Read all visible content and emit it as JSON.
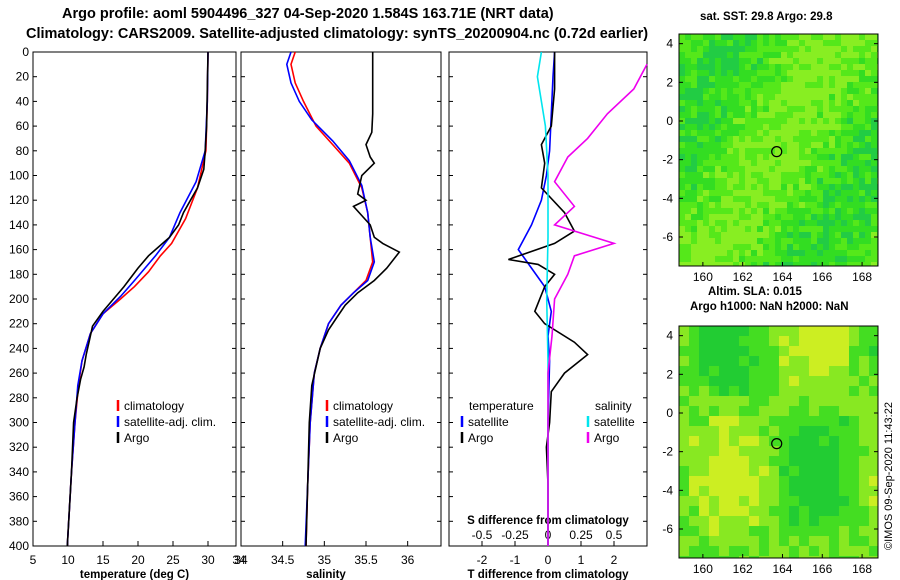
{
  "header": {
    "line1": "Argo profile: aoml 5904496_327 04-Sep-2020 1.584S 163.71E (NRT data)",
    "line2": "Climatology: CARS2009. Satellite-adjusted climatology: synTS_20200904.nc (0.72d earlier)"
  },
  "credit": "©IMOS 09-Sep-2020 11:43:22",
  "colors": {
    "climatology": "#ff0000",
    "satellite_adj": "#0000ff",
    "argo": "#000000",
    "s_satellite": "#00e5ee",
    "s_argo": "#ee00ee",
    "map_bg": "#33dd22"
  },
  "chart_data": [
    {
      "id": "temperature",
      "type": "line",
      "xlabel": "temperature (deg C)",
      "xlim": [
        5,
        34
      ],
      "xticks": [
        "5",
        "10",
        "15",
        "20",
        "25",
        "30"
      ],
      "ylabel": "depth",
      "ylim": [
        400,
        0
      ],
      "yticks": [
        "0",
        "20",
        "40",
        "60",
        "80",
        "100",
        "120",
        "140",
        "160",
        "180",
        "200",
        "220",
        "240",
        "260",
        "280",
        "300",
        "320",
        "340",
        "360",
        "380",
        "400"
      ],
      "legend": [
        "climatology",
        "satellite-adj. clim.",
        "Argo"
      ],
      "series": [
        {
          "name": "climatology",
          "color": "#ff0000",
          "points": [
            [
              30,
              0
            ],
            [
              29.9,
              40
            ],
            [
              29.7,
              80
            ],
            [
              28.5,
              110
            ],
            [
              26.8,
              135
            ],
            [
              24.8,
              155
            ],
            [
              23.2,
              165
            ],
            [
              21.5,
              178
            ],
            [
              19.5,
              190
            ],
            [
              17.5,
              200
            ],
            [
              15,
              212
            ],
            [
              13.2,
              228
            ],
            [
              12,
              250
            ],
            [
              11.5,
              270
            ],
            [
              11,
              300
            ],
            [
              10.5,
              340
            ],
            [
              10.2,
              370
            ],
            [
              9.9,
              400
            ]
          ]
        },
        {
          "name": "satellite-adj. clim.",
          "color": "#0000ff",
          "points": [
            [
              30,
              0
            ],
            [
              29.9,
              40
            ],
            [
              29.6,
              80
            ],
            [
              28.3,
              105
            ],
            [
              26,
              130
            ],
            [
              24.5,
              150
            ],
            [
              22.5,
              165
            ],
            [
              21,
              175
            ],
            [
              19.5,
              185
            ],
            [
              17.5,
              198
            ],
            [
              15,
              212
            ],
            [
              13.2,
              228
            ],
            [
              12,
              250
            ],
            [
              11.4,
              270
            ],
            [
              11,
              300
            ],
            [
              10.5,
              340
            ],
            [
              10.2,
              370
            ],
            [
              9.9,
              400
            ]
          ]
        },
        {
          "name": "Argo",
          "color": "#000000",
          "points": [
            [
              30,
              0
            ],
            [
              29.9,
              30
            ],
            [
              29.8,
              60
            ],
            [
              29.6,
              80
            ],
            [
              29.4,
              95
            ],
            [
              28.5,
              110
            ],
            [
              27.5,
              120
            ],
            [
              26.5,
              130
            ],
            [
              25.8,
              140
            ],
            [
              24.5,
              150
            ],
            [
              22.5,
              160
            ],
            [
              21.5,
              165
            ],
            [
              20,
              175
            ],
            [
              18,
              190
            ],
            [
              16.5,
              200
            ],
            [
              15,
              210
            ],
            [
              13.5,
              222
            ],
            [
              13,
              235
            ],
            [
              12.6,
              245
            ],
            [
              12.3,
              255
            ],
            [
              11.8,
              265
            ],
            [
              11.3,
              280
            ],
            [
              10.8,
              300
            ],
            [
              10.5,
              340
            ],
            [
              10.2,
              370
            ],
            [
              9.9,
              400
            ]
          ]
        }
      ]
    },
    {
      "id": "salinity",
      "type": "line",
      "xlabel": "salinity",
      "xlim": [
        34,
        36.4
      ],
      "xticks": [
        "34",
        "34.5",
        "35",
        "35.5",
        "36"
      ],
      "ylim": [
        400,
        0
      ],
      "legend": [
        "climatology",
        "satellite-adj. clim.",
        "Argo"
      ],
      "series": [
        {
          "name": "climatology",
          "color": "#ff0000",
          "points": [
            [
              34.65,
              0
            ],
            [
              34.6,
              10
            ],
            [
              34.65,
              25
            ],
            [
              34.75,
              40
            ],
            [
              34.9,
              60
            ],
            [
              35.1,
              75
            ],
            [
              35.3,
              90
            ],
            [
              35.45,
              110
            ],
            [
              35.52,
              130
            ],
            [
              35.55,
              150
            ],
            [
              35.58,
              170
            ],
            [
              35.5,
              185
            ],
            [
              35.35,
              195
            ],
            [
              35.2,
              205
            ],
            [
              35.05,
              220
            ],
            [
              34.95,
              240
            ],
            [
              34.88,
              260
            ],
            [
              34.83,
              300
            ],
            [
              34.8,
              350
            ],
            [
              34.78,
              400
            ]
          ]
        },
        {
          "name": "satellite-adj. clim.",
          "color": "#0000ff",
          "points": [
            [
              34.6,
              0
            ],
            [
              34.55,
              10
            ],
            [
              34.6,
              25
            ],
            [
              34.7,
              40
            ],
            [
              34.85,
              55
            ],
            [
              35.1,
              72
            ],
            [
              35.3,
              88
            ],
            [
              35.45,
              108
            ],
            [
              35.52,
              130
            ],
            [
              35.55,
              150
            ],
            [
              35.6,
              170
            ],
            [
              35.52,
              185
            ],
            [
              35.35,
              195
            ],
            [
              35.2,
              205
            ],
            [
              35.05,
              220
            ],
            [
              34.95,
              240
            ],
            [
              34.88,
              260
            ],
            [
              34.83,
              300
            ],
            [
              34.8,
              350
            ],
            [
              34.77,
              400
            ]
          ]
        },
        {
          "name": "Argo",
          "color": "#000000",
          "points": [
            [
              35.58,
              0
            ],
            [
              35.58,
              50
            ],
            [
              35.57,
              65
            ],
            [
              35.5,
              75
            ],
            [
              35.55,
              85
            ],
            [
              35.6,
              90
            ],
            [
              35.45,
              100
            ],
            [
              35.4,
              115
            ],
            [
              35.5,
              120
            ],
            [
              35.35,
              125
            ],
            [
              35.55,
              140
            ],
            [
              35.6,
              150
            ],
            [
              35.7,
              155
            ],
            [
              35.9,
              162
            ],
            [
              35.75,
              175
            ],
            [
              35.6,
              185
            ],
            [
              35.4,
              195
            ],
            [
              35.25,
              205
            ],
            [
              35.15,
              215
            ],
            [
              35.05,
              225
            ],
            [
              34.95,
              240
            ],
            [
              34.9,
              255
            ],
            [
              34.85,
              270
            ],
            [
              34.82,
              300
            ],
            [
              34.8,
              350
            ],
            [
              34.78,
              400
            ]
          ]
        }
      ]
    },
    {
      "id": "difference",
      "type": "line",
      "xlabel": "T difference from climatology",
      "xlabel2": "S difference from climatology",
      "xlim": [
        -3,
        3
      ],
      "xticks": [
        "-2",
        "-1",
        "0",
        "1",
        "2"
      ],
      "xlim2": [
        -0.75,
        0.75
      ],
      "xticks2": [
        "-0.5",
        "-0.25",
        "0",
        "0.25",
        "0.5"
      ],
      "ylim": [
        400,
        0
      ],
      "legend_t_title": "temperature",
      "legend_s_title": "salinity",
      "legend_t": [
        "satellite",
        "Argo"
      ],
      "legend_s": [
        "satellite",
        "Argo"
      ],
      "series": [
        {
          "name": "T satellite",
          "axis": "T",
          "color": "#0000ff",
          "points": [
            [
              0.2,
              0
            ],
            [
              0.15,
              20
            ],
            [
              0.1,
              50
            ],
            [
              0.05,
              80
            ],
            [
              -0.05,
              100
            ],
            [
              -0.2,
              120
            ],
            [
              -0.5,
              140
            ],
            [
              -0.9,
              160
            ],
            [
              -0.5,
              175
            ],
            [
              -0.1,
              190
            ],
            [
              0.1,
              210
            ],
            [
              0,
              230
            ],
            [
              0.05,
              250
            ],
            [
              0,
              300
            ],
            [
              0,
              400
            ]
          ]
        },
        {
          "name": "T Argo",
          "axis": "T",
          "color": "#000000",
          "points": [
            [
              0.2,
              0
            ],
            [
              0.2,
              30
            ],
            [
              0.1,
              60
            ],
            [
              -0.2,
              75
            ],
            [
              -0.1,
              90
            ],
            [
              -0.2,
              110
            ],
            [
              0.5,
              130
            ],
            [
              0.8,
              145
            ],
            [
              0.2,
              155
            ],
            [
              -1.2,
              168
            ],
            [
              -0.3,
              172
            ],
            [
              0.2,
              180
            ],
            [
              -0.1,
              190
            ],
            [
              -0.4,
              210
            ],
            [
              -0.1,
              220
            ],
            [
              0.8,
              235
            ],
            [
              1.2,
              245
            ],
            [
              0.5,
              260
            ],
            [
              0.1,
              275
            ],
            [
              0.05,
              300
            ],
            [
              -0.05,
              320
            ],
            [
              0,
              350
            ],
            [
              0,
              400
            ]
          ]
        },
        {
          "name": "S satellite",
          "axis": "S",
          "color": "#00e5ee",
          "points": [
            [
              -0.05,
              0
            ],
            [
              -0.08,
              20
            ],
            [
              -0.05,
              40
            ],
            [
              -0.02,
              60
            ],
            [
              -0.01,
              80
            ],
            [
              0,
              100
            ],
            [
              0,
              150
            ],
            [
              -0.01,
              200
            ],
            [
              0,
              250
            ],
            [
              0,
              300
            ],
            [
              0,
              400
            ]
          ]
        },
        {
          "name": "S Argo",
          "axis": "S",
          "color": "#ee00ee",
          "points": [
            [
              0.75,
              10
            ],
            [
              0.65,
              30
            ],
            [
              0.45,
              50
            ],
            [
              0.3,
              70
            ],
            [
              0.15,
              85
            ],
            [
              0.05,
              105
            ],
            [
              0.2,
              125
            ],
            [
              0.05,
              140
            ],
            [
              0.5,
              155
            ],
            [
              0.2,
              165
            ],
            [
              0.15,
              180
            ],
            [
              0.05,
              200
            ],
            [
              0.03,
              230
            ],
            [
              0,
              260
            ],
            [
              0,
              300
            ],
            [
              0,
              400
            ]
          ]
        }
      ]
    },
    {
      "id": "map_sst",
      "type": "heatmap",
      "title": "sat. SST: 29.8 Argo: 29.8",
      "xlim": [
        158.8,
        168.8
      ],
      "xticks": [
        "160",
        "162",
        "164",
        "166",
        "168"
      ],
      "ylim": [
        -7.5,
        4.5
      ],
      "yticks": [
        "4",
        "2",
        "0",
        "-2",
        "-4",
        "-6"
      ],
      "marker": [
        163.71,
        -1.584
      ]
    },
    {
      "id": "map_sla",
      "type": "heatmap",
      "title_line1": "Altim. SLA: 0.015",
      "title_line2": "Argo h1000: NaN h2000: NaN",
      "xlim": [
        158.8,
        168.8
      ],
      "xticks": [
        "160",
        "162",
        "164",
        "166",
        "168"
      ],
      "ylim": [
        -7.5,
        4.5
      ],
      "yticks": [
        "4",
        "2",
        "0",
        "-2",
        "-4",
        "-6"
      ],
      "marker": [
        163.71,
        -1.584
      ]
    }
  ]
}
